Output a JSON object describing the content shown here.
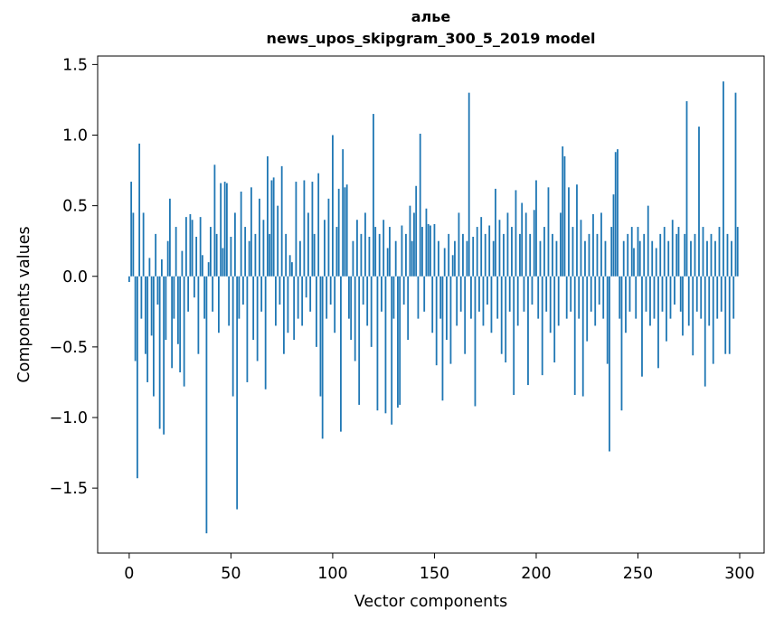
{
  "chart_data": {
    "type": "bar",
    "title_line1": "алье",
    "title_line2": "news_upos_skipgram_300_5_2019 model",
    "xlabel": "Vector components",
    "ylabel": "Components values",
    "x_start": 0,
    "x_tick_values": [
      0,
      50,
      100,
      150,
      200,
      250,
      300
    ],
    "x_tick_labels": [
      "0",
      "50",
      "100",
      "150",
      "200",
      "250",
      "300"
    ],
    "y_tick_values": [
      1.5,
      1.0,
      0.5,
      0.0,
      -0.5,
      -1.0,
      -1.5
    ],
    "y_tick_labels": [
      "1.5",
      "1.0",
      "0.5",
      "0.0",
      "−0.5",
      "−1.0",
      "−1.5"
    ],
    "xlim": [
      -15.5,
      312
    ],
    "ylim": [
      -1.96,
      1.56
    ],
    "bar_color": "#1f77b4",
    "bar_width": 0.8,
    "grid": false,
    "legend": false,
    "values": [
      -0.04,
      0.67,
      0.45,
      -0.6,
      -1.43,
      0.94,
      -0.3,
      0.45,
      -0.55,
      -0.75,
      0.13,
      -0.42,
      -0.85,
      0.3,
      -0.2,
      -1.08,
      0.12,
      -1.12,
      -0.45,
      0.25,
      0.55,
      -0.65,
      -0.3,
      0.35,
      -0.48,
      -0.68,
      0.18,
      -0.78,
      0.42,
      -0.25,
      0.44,
      0.4,
      -0.15,
      0.28,
      -0.55,
      0.42,
      0.15,
      -0.3,
      -1.82,
      0.1,
      0.35,
      -0.25,
      0.79,
      0.3,
      -0.4,
      0.66,
      0.2,
      0.67,
      0.66,
      -0.35,
      0.28,
      -0.85,
      0.45,
      -1.65,
      -0.3,
      0.6,
      -0.2,
      0.35,
      -0.75,
      0.25,
      0.63,
      -0.45,
      0.3,
      -0.6,
      0.55,
      -0.25,
      0.4,
      -0.8,
      0.85,
      0.3,
      0.68,
      0.7,
      -0.35,
      0.5,
      -0.2,
      0.78,
      -0.55,
      0.3,
      -0.4,
      0.15,
      0.1,
      -0.45,
      0.67,
      -0.3,
      0.25,
      -0.35,
      0.68,
      -0.15,
      0.45,
      -0.25,
      0.67,
      0.3,
      -0.5,
      0.73,
      -0.85,
      -1.15,
      0.4,
      -0.3,
      0.55,
      -0.2,
      1.0,
      -0.4,
      0.35,
      0.62,
      -1.1,
      0.9,
      0.63,
      0.65,
      -0.3,
      -0.45,
      0.25,
      -0.6,
      0.4,
      -0.91,
      0.3,
      -0.2,
      0.45,
      -0.35,
      0.28,
      -0.5,
      1.15,
      0.35,
      -0.95,
      0.3,
      -0.25,
      0.4,
      -0.97,
      0.2,
      0.35,
      -1.05,
      -0.3,
      0.25,
      -0.93,
      -0.91,
      0.36,
      -0.2,
      0.3,
      -0.45,
      0.5,
      0.25,
      0.45,
      0.64,
      -0.3,
      1.01,
      0.35,
      -0.25,
      0.48,
      0.37,
      0.36,
      -0.4,
      0.37,
      -0.63,
      0.25,
      -0.3,
      -0.88,
      0.2,
      -0.45,
      0.3,
      -0.62,
      0.15,
      0.25,
      -0.35,
      0.45,
      -0.25,
      0.3,
      -0.55,
      0.25,
      1.3,
      -0.3,
      0.28,
      -0.92,
      0.35,
      -0.25,
      0.42,
      -0.35,
      0.3,
      -0.2,
      0.36,
      -0.4,
      0.25,
      0.62,
      -0.3,
      0.4,
      -0.55,
      0.3,
      -0.61,
      0.45,
      -0.25,
      0.35,
      -0.84,
      0.61,
      -0.35,
      0.3,
      0.52,
      -0.25,
      0.45,
      -0.77,
      0.3,
      -0.2,
      0.47,
      0.68,
      -0.3,
      0.25,
      -0.7,
      0.35,
      -0.25,
      0.63,
      -0.4,
      0.3,
      -0.61,
      0.25,
      -0.35,
      0.45,
      0.92,
      0.85,
      -0.3,
      0.63,
      -0.25,
      0.35,
      -0.84,
      0.65,
      -0.3,
      0.4,
      -0.85,
      0.25,
      -0.46,
      0.3,
      -0.25,
      0.44,
      -0.35,
      0.3,
      -0.2,
      0.45,
      -0.3,
      0.25,
      -0.62,
      -1.24,
      0.35,
      0.58,
      0.88,
      0.9,
      -0.3,
      -0.95,
      0.25,
      -0.4,
      0.3,
      -0.25,
      0.35,
      0.2,
      -0.3,
      0.35,
      0.25,
      -0.71,
      0.3,
      -0.25,
      0.5,
      -0.35,
      0.25,
      -0.3,
      0.2,
      -0.65,
      0.3,
      -0.25,
      0.35,
      -0.46,
      0.25,
      -0.3,
      0.4,
      -0.2,
      0.3,
      0.35,
      -0.25,
      -0.42,
      0.3,
      1.24,
      -0.35,
      0.25,
      -0.56,
      0.3,
      -0.25,
      1.06,
      -0.3,
      0.35,
      -0.78,
      0.25,
      -0.35,
      0.3,
      -0.62,
      0.25,
      -0.3,
      0.35,
      -0.25,
      1.38,
      -0.55,
      0.3,
      -0.55,
      0.25,
      -0.3,
      1.3,
      0.35
    ]
  }
}
